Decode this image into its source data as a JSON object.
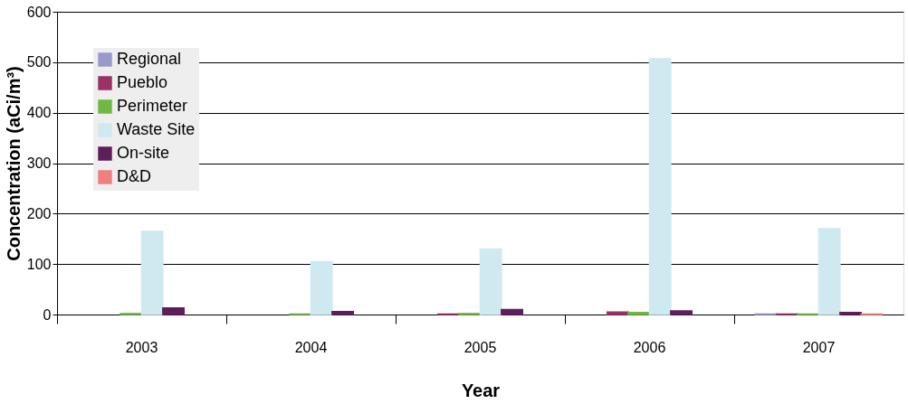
{
  "chart_data": {
    "type": "bar",
    "xlabel": "Year",
    "ylabel": "Concentration (aCi/m³)",
    "categories": [
      "2003",
      "2004",
      "2005",
      "2006",
      "2007"
    ],
    "series": [
      {
        "name": "Regional",
        "color": "#9999cc",
        "values": [
          null,
          null,
          null,
          null,
          1
        ]
      },
      {
        "name": "Pueblo",
        "color": "#993366",
        "values": [
          null,
          null,
          1,
          5,
          1
        ]
      },
      {
        "name": "Perimeter",
        "color": "#70b844",
        "values": [
          2,
          1,
          2,
          4,
          1
        ]
      },
      {
        "name": "Waste Site",
        "color": "#cfe9f0",
        "values": [
          165,
          105,
          130,
          507,
          170
        ]
      },
      {
        "name": "On-site",
        "color": "#5c1f5c",
        "values": [
          13,
          6,
          10,
          7,
          4
        ]
      },
      {
        "name": "D&D",
        "color": "#f08080",
        "values": [
          null,
          null,
          null,
          null,
          1
        ]
      }
    ],
    "ylim": [
      0,
      600
    ],
    "yticks": [
      0,
      100,
      200,
      300,
      400,
      500,
      600
    ],
    "grid": "y",
    "legend": "top left"
  }
}
